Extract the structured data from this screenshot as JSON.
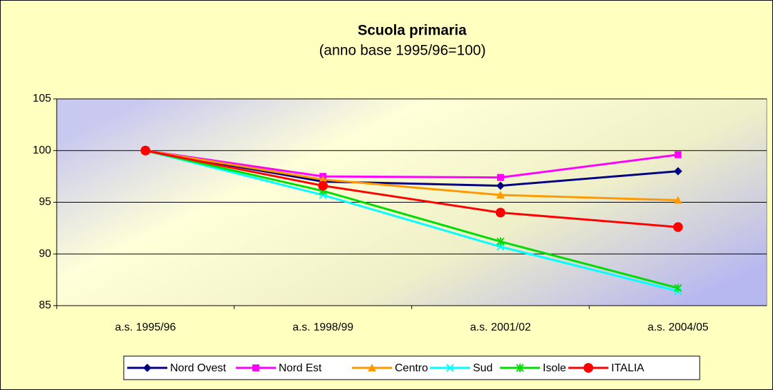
{
  "chart_data": {
    "type": "line",
    "title": "Scuola primaria",
    "subtitle": "(anno base 1995/96=100)",
    "categories": [
      "a.s. 1995/96",
      "a.s. 1998/99",
      "a.s. 2001/02",
      "a.s. 2004/05"
    ],
    "series": [
      {
        "name": "Nord Ovest",
        "color": "#000080",
        "marker": "diamond",
        "values": [
          100,
          97.0,
          96.6,
          98.0
        ]
      },
      {
        "name": "Nord Est",
        "color": "#ff00ff",
        "marker": "square",
        "values": [
          100,
          97.5,
          97.4,
          99.6
        ]
      },
      {
        "name": "Centro",
        "color": "#ff9900",
        "marker": "triangle",
        "values": [
          100,
          97.2,
          95.7,
          95.2
        ]
      },
      {
        "name": "Sud",
        "color": "#00ffff",
        "marker": "x",
        "values": [
          100,
          95.7,
          90.7,
          86.4
        ]
      },
      {
        "name": "Isole",
        "color": "#00dd00",
        "marker": "asterisk",
        "values": [
          100,
          96.1,
          91.2,
          86.7
        ]
      },
      {
        "name": "ITALIA",
        "color": "#ff0000",
        "marker": "circle",
        "values": [
          100,
          96.6,
          94.0,
          92.6
        ]
      }
    ],
    "ylim": [
      85,
      105
    ],
    "yticks": [
      85,
      90,
      95,
      100,
      105
    ],
    "grid": true,
    "legend": "bottom"
  }
}
